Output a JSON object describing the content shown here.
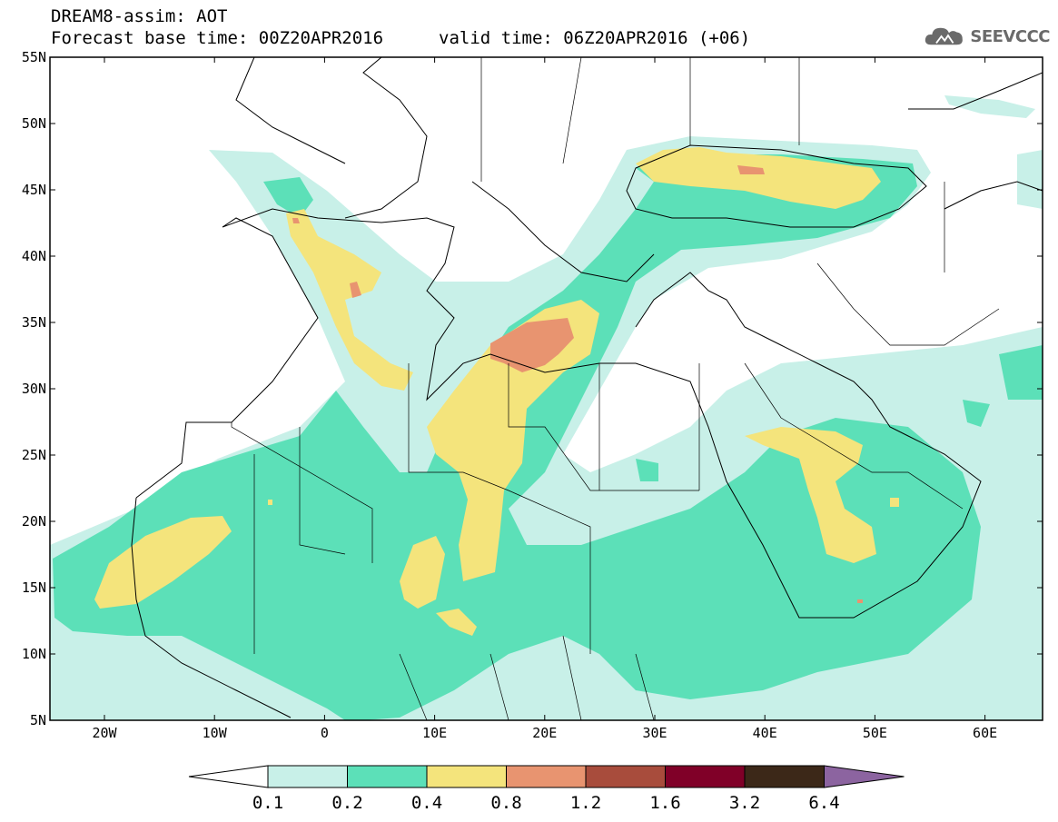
{
  "header": {
    "title": "DREAM8-assim: AOT",
    "base_time": "Forecast base time: 00Z20APR2016",
    "valid_time": "valid time: 06Z20APR2016 (+06)",
    "logo_text": "SEEVCCC"
  },
  "map": {
    "lat_labels": [
      "55N",
      "50N",
      "45N",
      "40N",
      "35N",
      "30N",
      "25N",
      "20N",
      "15N",
      "10N",
      "5N"
    ],
    "lon_labels": [
      "20W",
      "10W",
      "0",
      "10E",
      "20E",
      "30E",
      "40E",
      "50E",
      "60E"
    ],
    "frame_color": "#000000"
  },
  "colorbar": {
    "levels": [
      "0.1",
      "0.2",
      "0.4",
      "0.8",
      "1.2",
      "1.6",
      "3.2",
      "6.4"
    ],
    "colors": [
      "#c8f0e8",
      "#5ce0b8",
      "#f4e47c",
      "#e89470",
      "#a84c3c",
      "#800028",
      "#3c2818",
      "#8c64a0"
    ],
    "under_color": "#ffffff"
  }
}
